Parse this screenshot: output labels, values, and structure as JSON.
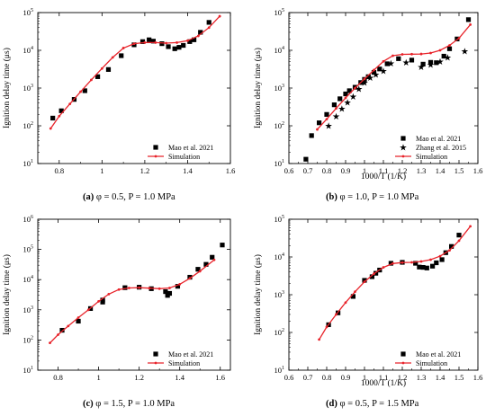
{
  "colors": {
    "simulation": "#e8232a",
    "marker": "#000000",
    "axis": "#000000"
  },
  "captions": [
    {
      "label": "(a)",
      "text": " φ = 0.5, P = 1.0 MPa"
    },
    {
      "label": "(b)",
      "text": " φ = 1.0, P = 1.0 MPa"
    },
    {
      "label": "(c)",
      "text": " φ = 1.5, P = 1.0 MPa"
    },
    {
      "label": "(d)",
      "text": " φ = 0.5, P = 1.5 MPa"
    }
  ],
  "chart_data": [
    {
      "type": "scatter+line",
      "title": "",
      "xlabel": "",
      "ylabel": "Ignition delay time (μs)",
      "xlim": [
        0.7,
        1.6
      ],
      "xticks": [
        0.8,
        1.0,
        1.2,
        1.4,
        1.6
      ],
      "ylim": [
        10,
        100000
      ],
      "yscale": "log",
      "yticks": [
        10,
        100,
        1000,
        10000,
        100000
      ],
      "legend_position": "bottom-right",
      "series": [
        {
          "name": "Mao et al. 2021",
          "kind": "scatter",
          "marker": "square",
          "x": [
            0.77,
            0.81,
            0.87,
            0.92,
            0.98,
            1.03,
            1.09,
            1.15,
            1.19,
            1.22,
            1.24,
            1.28,
            1.31,
            1.34,
            1.36,
            1.38,
            1.41,
            1.43,
            1.46,
            1.5
          ],
          "y": [
            160,
            250,
            500,
            850,
            2000,
            3100,
            7200,
            14000,
            17000,
            19000,
            17500,
            15000,
            12500,
            11000,
            12000,
            13500,
            17000,
            19000,
            30000,
            55000
          ]
        },
        {
          "name": "Simulation",
          "kind": "line",
          "marker": "small-dot",
          "x": [
            0.76,
            0.8,
            0.85,
            0.9,
            0.95,
            1.0,
            1.05,
            1.1,
            1.15,
            1.2,
            1.25,
            1.3,
            1.35,
            1.4,
            1.45,
            1.5,
            1.55
          ],
          "y": [
            85,
            180,
            380,
            800,
            1650,
            3300,
            6500,
            11500,
            15000,
            16000,
            16000,
            15500,
            16000,
            18000,
            24000,
            40000,
            80000
          ]
        }
      ]
    },
    {
      "type": "scatter+line",
      "title": "",
      "xlabel": "1000/T (1/K)",
      "ylabel": "Ignition delay time (μs)",
      "xlim": [
        0.6,
        1.6
      ],
      "xticks": [
        0.6,
        0.7,
        0.8,
        0.9,
        1.0,
        1.1,
        1.2,
        1.3,
        1.4,
        1.5,
        1.6
      ],
      "ylim": [
        10,
        100000
      ],
      "yscale": "log",
      "yticks": [
        10,
        100,
        1000,
        10000,
        100000
      ],
      "legend_position": "bottom-right",
      "series": [
        {
          "name": "Mao et al. 2021",
          "kind": "scatter",
          "marker": "square",
          "x": [
            0.69,
            0.72,
            0.76,
            0.8,
            0.84,
            0.87,
            0.9,
            0.92,
            0.95,
            0.98,
            1.0,
            1.02,
            1.05,
            1.08,
            1.12,
            1.18,
            1.25,
            1.31,
            1.35,
            1.38,
            1.42,
            1.45,
            1.49,
            1.55
          ],
          "y": [
            13,
            55,
            120,
            200,
            360,
            520,
            700,
            850,
            1050,
            1400,
            1700,
            2000,
            2600,
            3200,
            4400,
            6000,
            5500,
            4300,
            4800,
            4700,
            7000,
            11000,
            20000,
            65000
          ]
        },
        {
          "name": "Zhang et al. 2015",
          "kind": "scatter",
          "marker": "star",
          "x": [
            0.81,
            0.85,
            0.88,
            0.91,
            0.94,
            0.97,
            1.0,
            1.03,
            1.06,
            1.1,
            1.14,
            1.22,
            1.3,
            1.35,
            1.4,
            1.44,
            1.53
          ],
          "y": [
            100,
            180,
            280,
            420,
            600,
            950,
            1400,
            1900,
            2300,
            2800,
            4500,
            4800,
            3600,
            4200,
            5000,
            6500,
            9500
          ]
        },
        {
          "name": "Simulation",
          "kind": "line",
          "marker": "small-dot",
          "x": [
            0.75,
            0.8,
            0.85,
            0.9,
            0.95,
            1.0,
            1.05,
            1.1,
            1.15,
            1.2,
            1.25,
            1.3,
            1.35,
            1.4,
            1.45,
            1.5,
            1.56
          ],
          "y": [
            80,
            150,
            290,
            550,
            1000,
            1750,
            3000,
            5100,
            7200,
            7800,
            7900,
            8000,
            8500,
            10000,
            13500,
            21000,
            48000
          ]
        }
      ]
    },
    {
      "type": "scatter+line",
      "title": "",
      "xlabel": "",
      "ylabel": "Ignition delay time (μs)",
      "xlim": [
        0.7,
        1.65
      ],
      "xticks": [
        0.8,
        1.0,
        1.2,
        1.4,
        1.6
      ],
      "ylim": [
        10,
        1000000
      ],
      "yscale": "log",
      "yticks": [
        10,
        100,
        1000,
        10000,
        100000,
        1000000
      ],
      "legend_position": "bottom-right",
      "series": [
        {
          "name": "Mao et al. 2021",
          "kind": "scatter",
          "marker": "square",
          "x": [
            0.82,
            0.9,
            0.96,
            1.02,
            1.02,
            1.13,
            1.2,
            1.26,
            1.33,
            1.34,
            1.35,
            1.39,
            1.45,
            1.49,
            1.53,
            1.56,
            1.61
          ],
          "y": [
            210,
            420,
            1100,
            2100,
            1800,
            5400,
            5600,
            5000,
            4000,
            3000,
            3500,
            6000,
            12000,
            22000,
            32000,
            55000,
            140000
          ]
        },
        {
          "name": "Simulation",
          "kind": "line",
          "marker": "small-dot",
          "x": [
            0.76,
            0.8,
            0.85,
            0.9,
            0.95,
            1.0,
            1.05,
            1.1,
            1.15,
            1.2,
            1.25,
            1.3,
            1.35,
            1.4,
            1.45,
            1.5,
            1.57
          ],
          "y": [
            80,
            150,
            290,
            550,
            1000,
            1900,
            3300,
            4700,
            5300,
            5400,
            5200,
            5000,
            5300,
            7000,
            11000,
            19000,
            45000
          ]
        }
      ]
    },
    {
      "type": "scatter+line",
      "title": "",
      "xlabel": "1000/T (1/K)",
      "ylabel": "Ignition delay time (μs)",
      "xlim": [
        0.6,
        1.6
      ],
      "xticks": [
        0.6,
        0.7,
        0.8,
        0.9,
        1.0,
        1.1,
        1.2,
        1.3,
        1.4,
        1.5,
        1.6
      ],
      "ylim": [
        10,
        100000
      ],
      "yscale": "log",
      "yticks": [
        10,
        100,
        1000,
        10000,
        100000
      ],
      "legend_position": "bottom-right",
      "series": [
        {
          "name": "Mao et al. 2021",
          "kind": "scatter",
          "marker": "square",
          "x": [
            0.81,
            0.86,
            0.94,
            1.0,
            1.04,
            1.06,
            1.08,
            1.14,
            1.2,
            1.27,
            1.29,
            1.31,
            1.33,
            1.36,
            1.38,
            1.41,
            1.43,
            1.46,
            1.5
          ],
          "y": [
            160,
            330,
            900,
            2400,
            3000,
            3700,
            4500,
            6800,
            7200,
            6800,
            5400,
            5300,
            5100,
            5700,
            7000,
            8500,
            13000,
            19000,
            38000
          ]
        },
        {
          "name": "Simulation",
          "kind": "line",
          "marker": "small-dot",
          "x": [
            0.76,
            0.8,
            0.85,
            0.9,
            0.95,
            1.0,
            1.05,
            1.1,
            1.15,
            1.2,
            1.25,
            1.3,
            1.35,
            1.4,
            1.45,
            1.5,
            1.56
          ],
          "y": [
            65,
            140,
            300,
            620,
            1200,
            2200,
            3600,
            5300,
            6700,
            7100,
            7200,
            7600,
            8500,
            10500,
            15000,
            27000,
            65000
          ]
        }
      ]
    }
  ]
}
